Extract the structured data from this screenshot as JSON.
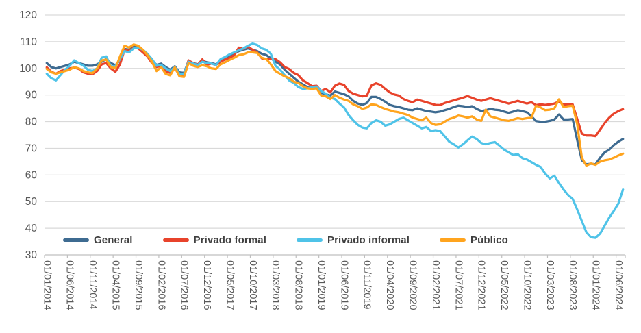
{
  "chart_data": {
    "type": "line",
    "title": "",
    "xlabel": "",
    "ylabel": "",
    "x_frequency": "monthly",
    "x_start": "01/2014",
    "x_end": "07/2024",
    "x_tick_labels": [
      "01/01/2014",
      "01/06/2014",
      "01/11/2014",
      "01/04/2015",
      "01/09/2015",
      "01/02/2016",
      "01/07/2016",
      "01/12/2016",
      "01/05/2017",
      "01/10/2017",
      "01/03/2018",
      "01/08/2018",
      "01/01/2019",
      "01/06/2019",
      "01/11/2019",
      "01/04/2020",
      "01/09/2020",
      "01/02/2021",
      "01/07/2021",
      "01/12/2021",
      "01/05/2022",
      "01/10/2022",
      "01/03/2023",
      "01/08/2023",
      "01/01/2024",
      "01/06/2024"
    ],
    "x_tick_interval_months": 5,
    "y_axis": {
      "min": 30,
      "max": 120,
      "step": 10
    },
    "grid": true,
    "legend_position": "bottom-inside",
    "colors": {
      "grid": "#D9D9D9",
      "axis": "#BFBFBF",
      "tick": "#BFBFBF",
      "axis_text": "#595959"
    },
    "series": [
      {
        "name": "General",
        "color": "#3E6B91",
        "values": [
          102,
          100.5,
          100,
          100.5,
          101,
          101.5,
          102.5,
          102,
          101.5,
          101,
          101,
          101.5,
          102.5,
          103.5,
          102,
          101.2,
          103,
          107.3,
          107,
          108.3,
          108,
          107,
          105,
          103,
          101.3,
          101.8,
          100.5,
          99.5,
          100.8,
          98.5,
          98.3,
          102.8,
          102,
          101.5,
          102.8,
          102.3,
          102,
          101.5,
          103,
          103.8,
          104.5,
          105.5,
          106.5,
          107,
          107.5,
          107,
          106.5,
          105.5,
          105,
          103.8,
          102.5,
          101.5,
          99.5,
          98,
          96.5,
          95,
          94,
          93,
          92.8,
          92.8,
          90.8,
          90.3,
          89.8,
          91.3,
          90.8,
          90.3,
          89.5,
          87.8,
          86.8,
          86.3,
          87,
          89.3,
          89.3,
          88.5,
          87.5,
          86.3,
          85.8,
          85.5,
          85,
          84.5,
          84.3,
          85,
          84.5,
          84,
          83.8,
          83.5,
          83.8,
          84.3,
          84.8,
          85.5,
          86,
          85.8,
          85.5,
          85.8,
          84.8,
          84,
          84.3,
          84.8,
          84.5,
          84.3,
          83.8,
          83.3,
          83.8,
          84.3,
          84,
          83.5,
          82,
          80.2,
          80,
          80,
          80.3,
          80.8,
          82.7,
          80.8,
          80.8,
          81,
          73,
          65.5,
          64,
          64.2,
          64,
          66.5,
          68.5,
          69.5,
          71.2,
          72.5,
          73.5
        ]
      },
      {
        "name": "Privado formal",
        "color": "#E8432B",
        "values": [
          100.4,
          98.7,
          98,
          99,
          99.5,
          100,
          100.3,
          99.8,
          98.5,
          98,
          97.8,
          99,
          101.5,
          102,
          100,
          98.7,
          101.5,
          107,
          106.5,
          107.7,
          107.5,
          106,
          104.5,
          102,
          100.5,
          101,
          99,
          98.3,
          100,
          97.5,
          97.5,
          103,
          102,
          101.3,
          103.4,
          101.3,
          101.8,
          101.3,
          102.5,
          103.3,
          104,
          105,
          107.8,
          107.3,
          108.2,
          107,
          106,
          103.8,
          103.4,
          103.6,
          103.5,
          102.3,
          100.5,
          99.8,
          98.3,
          97.5,
          95.5,
          94.5,
          93.3,
          93.5,
          91.5,
          92.3,
          91,
          93.5,
          94.3,
          93.8,
          91.5,
          90.5,
          90,
          89.5,
          89.8,
          93.6,
          94.4,
          93.8,
          92.3,
          91,
          90.2,
          89.8,
          88.5,
          87.8,
          87.3,
          88.3,
          87.8,
          87.3,
          86.8,
          86.3,
          86.2,
          87,
          87.5,
          88,
          88.5,
          89,
          89.6,
          89,
          88.3,
          87.8,
          88.3,
          88.8,
          88.3,
          87.8,
          87.3,
          86.8,
          87.3,
          87.8,
          87.3,
          86.8,
          87.3,
          86.2,
          86.5,
          86.3,
          86.5,
          86.8,
          87.6,
          86.4,
          86.5,
          86.5,
          81,
          75.5,
          74.8,
          74.8,
          74.6,
          77,
          79.5,
          81.5,
          83,
          84,
          84.7
        ]
      },
      {
        "name": "Privado informal",
        "color": "#4FC3E8",
        "values": [
          98,
          96.3,
          95.5,
          97.5,
          99.5,
          101,
          103,
          102,
          101,
          99.5,
          99,
          100,
          104,
          104.5,
          100.8,
          100.8,
          103.5,
          106.5,
          106,
          107.5,
          107.8,
          107,
          105.5,
          103.5,
          101,
          101.3,
          100,
          99,
          100.5,
          98,
          98,
          102.5,
          101.8,
          101.3,
          102.5,
          102,
          101.8,
          101.3,
          103.5,
          104.3,
          105.3,
          106,
          106.8,
          107.5,
          108.5,
          109.3,
          108.8,
          107.5,
          107,
          105.5,
          101,
          99.5,
          97.5,
          95.5,
          94.5,
          93,
          92.3,
          92.5,
          93,
          93.2,
          91.5,
          90.5,
          89,
          88.5,
          86.8,
          85.3,
          82.5,
          80.5,
          78.8,
          77.8,
          77.5,
          79.5,
          80.5,
          80,
          78.5,
          79,
          80,
          81,
          81.5,
          80.5,
          79.5,
          78.5,
          77.5,
          78,
          76.5,
          76.8,
          76.5,
          74.5,
          72.5,
          71.5,
          70.3,
          71.5,
          73,
          74.4,
          73.5,
          72,
          71.5,
          72,
          72.3,
          71,
          69.5,
          68.5,
          67.5,
          67.8,
          66.3,
          65.8,
          64.8,
          63.8,
          63,
          60.5,
          58.7,
          59.7,
          57,
          54.5,
          52.5,
          51,
          47,
          42.7,
          38.5,
          36.6,
          36.4,
          38,
          41,
          44,
          46.5,
          49.3,
          54.5
        ]
      },
      {
        "name": "Público",
        "color": "#FFA41E",
        "values": [
          99.8,
          98.5,
          98,
          98.5,
          99,
          99.5,
          100.5,
          100,
          99,
          98.5,
          98.2,
          100,
          103,
          103.3,
          100.5,
          100,
          104.5,
          108.5,
          107.8,
          109,
          108.5,
          107,
          105,
          102.5,
          99,
          100.5,
          97.9,
          97.4,
          100.4,
          97,
          96.8,
          102,
          101,
          100.5,
          101.2,
          100.8,
          100,
          99.8,
          101.5,
          102.3,
          103.2,
          104,
          105,
          105.3,
          106,
          106,
          105.8,
          104,
          103.5,
          101.5,
          99,
          98,
          97,
          96.4,
          95,
          94.5,
          93.3,
          92.5,
          92.3,
          92.5,
          89.8,
          89.5,
          88.5,
          90,
          89,
          88.3,
          87.8,
          86.5,
          85.8,
          84.8,
          85.3,
          86.5,
          86.3,
          85.5,
          84.8,
          84.3,
          83.8,
          83.5,
          83,
          82.5,
          81.5,
          81,
          80.5,
          81.5,
          79.5,
          78.8,
          79,
          80,
          81,
          81.5,
          82.3,
          82,
          81.5,
          82,
          80.8,
          80.3,
          84.5,
          82,
          81.5,
          81,
          80.5,
          80.3,
          80.8,
          81.3,
          81,
          81.3,
          81.5,
          86,
          85.3,
          84.3,
          84.5,
          85,
          88.4,
          85.5,
          85.8,
          86,
          79,
          66.5,
          63.5,
          64.3,
          63.8,
          65,
          65.5,
          65.8,
          66.5,
          67.3,
          68
        ]
      }
    ]
  }
}
